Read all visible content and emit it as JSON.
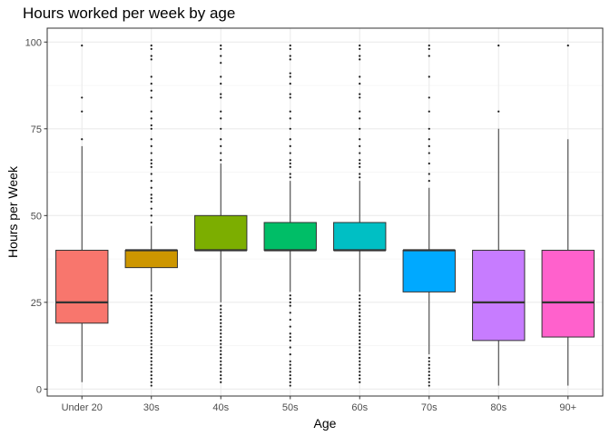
{
  "chart_data": {
    "type": "boxplot",
    "title": "Hours worked per week by age",
    "xlabel": "Age",
    "ylabel": "Hours per Week",
    "ylim": [
      -2,
      104
    ],
    "yticks": [
      0,
      25,
      50,
      75,
      100
    ],
    "grid": true,
    "legend": "none",
    "categories": [
      "Under 20",
      "30s",
      "40s",
      "50s",
      "60s",
      "70s",
      "80s",
      "90+"
    ],
    "boxes": [
      {
        "category": "Under 20",
        "color": "#F8766D",
        "whisker_low": 2,
        "q1": 19,
        "median": 25,
        "q3": 40,
        "whisker_high": 70,
        "outliers_high": [
          72,
          80,
          84,
          99
        ],
        "outliers_low": []
      },
      {
        "category": "30s",
        "color": "#CD9600",
        "whisker_low": 28,
        "q1": 35,
        "median": 40,
        "q3": 40,
        "whisker_high": 47,
        "outliers_high": [
          48,
          50,
          52,
          54,
          55,
          56,
          58,
          60,
          62,
          64,
          65,
          66,
          68,
          70,
          72,
          75,
          76,
          78,
          80,
          84,
          86,
          88,
          90,
          95,
          96,
          98,
          99
        ],
        "outliers_low": [
          1,
          2,
          3,
          4,
          5,
          6,
          7,
          8,
          9,
          10,
          11,
          12,
          13,
          14,
          15,
          16,
          17,
          18,
          19,
          20,
          21,
          22,
          23,
          24,
          25,
          26,
          27
        ]
      },
      {
        "category": "40s",
        "color": "#7CAE00",
        "whisker_low": 25,
        "q1": 40,
        "median": 40,
        "q3": 50,
        "whisker_high": 65,
        "outliers_high": [
          66,
          68,
          70,
          72,
          75,
          78,
          80,
          84,
          85,
          88,
          90,
          94,
          96,
          98,
          99
        ],
        "outliers_low": [
          2,
          3,
          4,
          5,
          6,
          7,
          8,
          9,
          10,
          11,
          12,
          13,
          14,
          15,
          16,
          17,
          18,
          19,
          20,
          21,
          22,
          23,
          24
        ]
      },
      {
        "category": "50s",
        "color": "#00BE67",
        "whisker_low": 28,
        "q1": 40,
        "median": 40,
        "q3": 48,
        "whisker_high": 60,
        "outliers_high": [
          61,
          62,
          64,
          65,
          66,
          68,
          70,
          72,
          75,
          78,
          80,
          84,
          85,
          88,
          90,
          91,
          95,
          96,
          98,
          99
        ],
        "outliers_low": [
          1,
          2,
          3,
          4,
          5,
          6,
          7,
          8,
          10,
          12,
          14,
          15,
          16,
          18,
          20,
          22,
          24,
          25,
          26,
          27
        ]
      },
      {
        "category": "60s",
        "color": "#00BFC4",
        "whisker_low": 28,
        "q1": 40,
        "median": 40,
        "q3": 48,
        "whisker_high": 60,
        "outliers_high": [
          61,
          62,
          64,
          65,
          66,
          68,
          70,
          72,
          75,
          78,
          80,
          84,
          85,
          88,
          90,
          95,
          96,
          98,
          99
        ],
        "outliers_low": [
          2,
          3,
          4,
          5,
          6,
          7,
          8,
          9,
          10,
          11,
          12,
          13,
          14,
          15,
          16,
          17,
          18,
          19,
          20,
          21,
          22,
          23,
          24,
          25,
          26,
          27
        ]
      },
      {
        "category": "70s",
        "color": "#00A9FF",
        "whisker_low": 10,
        "q1": 28,
        "median": 40,
        "q3": 40,
        "whisker_high": 58,
        "outliers_high": [
          60,
          62,
          65,
          68,
          70,
          72,
          75,
          80,
          84,
          90,
          96,
          98,
          99
        ],
        "outliers_low": [
          1,
          2,
          3,
          4,
          5,
          6,
          7,
          8,
          9
        ]
      },
      {
        "category": "80s",
        "color": "#C77CFF",
        "whisker_low": 1,
        "q1": 14,
        "median": 25,
        "q3": 40,
        "whisker_high": 75,
        "outliers_high": [
          80,
          99
        ],
        "outliers_low": []
      },
      {
        "category": "90+",
        "color": "#FF61CC",
        "whisker_low": 1,
        "q1": 15,
        "median": 25,
        "q3": 40,
        "whisker_high": 72,
        "outliers_high": [
          99
        ],
        "outliers_low": []
      }
    ]
  }
}
